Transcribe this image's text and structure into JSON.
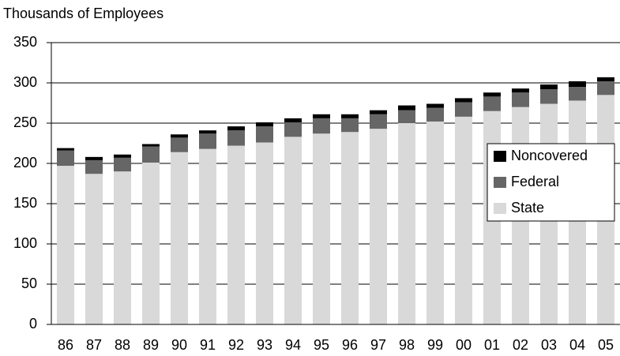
{
  "chart_data": {
    "type": "stacked-bar",
    "title": "Thousands of Employees",
    "categories": [
      "86",
      "87",
      "88",
      "89",
      "90",
      "91",
      "92",
      "93",
      "94",
      "95",
      "96",
      "97",
      "98",
      "99",
      "00",
      "01",
      "02",
      "03",
      "04",
      "05"
    ],
    "series": [
      {
        "name": "State",
        "color": "#d9d9d9",
        "values": [
          197,
          187,
          190,
          201,
          214,
          218,
          222,
          226,
          233,
          237,
          239,
          243,
          250,
          252,
          258,
          265,
          270,
          274,
          278,
          285
        ]
      },
      {
        "name": "Federal",
        "color": "#666666",
        "values": [
          19,
          17,
          17,
          20,
          18,
          19,
          19,
          20,
          18,
          19,
          17,
          18,
          16,
          17,
          18,
          18,
          18,
          18,
          17,
          17
        ]
      },
      {
        "name": "Noncovered",
        "color": "#000000",
        "values": [
          3,
          4,
          4,
          3,
          4,
          4,
          5,
          5,
          5,
          5,
          5,
          5,
          6,
          5,
          5,
          5,
          5,
          6,
          7,
          5
        ]
      }
    ],
    "ylim": [
      0,
      350
    ],
    "yticks": [
      0,
      50,
      100,
      150,
      200,
      250,
      300,
      350
    ],
    "grid": true,
    "legend": "right"
  }
}
